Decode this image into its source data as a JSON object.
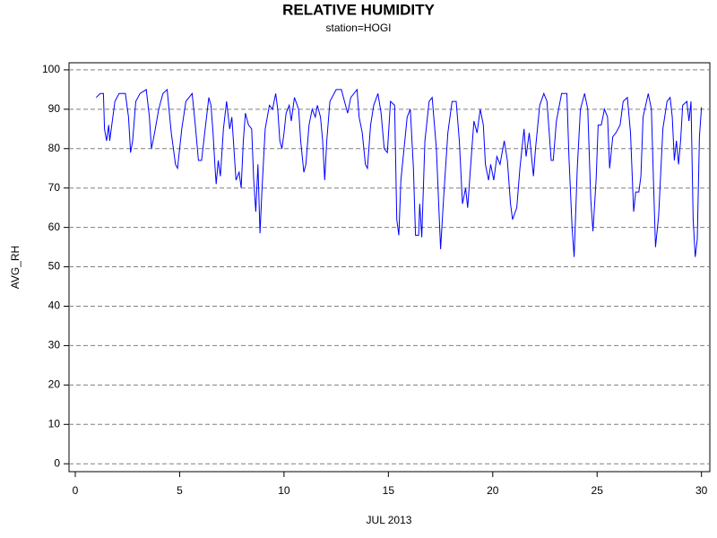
{
  "chart_data": {
    "type": "line",
    "title": "RELATIVE HUMIDITY",
    "subtitle": "station=HOGI",
    "xlabel": "JUL 2013",
    "ylabel": "AVG_RH",
    "color": "#0000ff",
    "grid": true,
    "xlim": [
      -0.3,
      30.4
    ],
    "xticks": [
      0,
      5,
      10,
      15,
      20,
      25,
      30
    ],
    "ylim": [
      -2,
      101.8
    ],
    "yticks": [
      0,
      10,
      20,
      30,
      40,
      50,
      60,
      70,
      80,
      90,
      100
    ],
    "x": [
      1.0,
      1.2,
      1.35,
      1.4,
      1.5,
      1.6,
      1.65,
      1.8,
      1.9,
      2.1,
      2.4,
      2.55,
      2.65,
      2.75,
      2.9,
      3.1,
      3.4,
      3.55,
      3.65,
      3.8,
      4.0,
      4.2,
      4.4,
      4.6,
      4.8,
      4.9,
      5.1,
      5.3,
      5.6,
      5.75,
      5.9,
      6.05,
      6.2,
      6.4,
      6.5,
      6.6,
      6.7,
      6.75,
      6.85,
      6.95,
      7.1,
      7.25,
      7.4,
      7.5,
      7.6,
      7.7,
      7.85,
      7.95,
      8.05,
      8.15,
      8.3,
      8.45,
      8.55,
      8.65,
      8.75,
      8.85,
      8.95,
      9.1,
      9.3,
      9.45,
      9.6,
      9.7,
      9.8,
      9.9,
      10.0,
      10.1,
      10.25,
      10.35,
      10.5,
      10.7,
      10.8,
      10.95,
      11.05,
      11.2,
      11.35,
      11.5,
      11.6,
      11.75,
      11.85,
      11.95,
      12.05,
      12.2,
      12.5,
      12.75,
      12.9,
      13.05,
      13.2,
      13.5,
      13.6,
      13.75,
      13.9,
      14.0,
      14.15,
      14.3,
      14.5,
      14.65,
      14.8,
      14.95,
      15.1,
      15.3,
      15.4,
      15.5,
      15.6,
      15.75,
      15.9,
      16.05,
      16.2,
      16.3,
      16.45,
      16.5,
      16.6,
      16.75,
      16.95,
      17.1,
      17.3,
      17.5,
      17.65,
      17.85,
      18.05,
      18.25,
      18.4,
      18.55,
      18.7,
      18.8,
      19.0,
      19.1,
      19.25,
      19.4,
      19.55,
      19.65,
      19.8,
      19.9,
      20.05,
      20.2,
      20.35,
      20.55,
      20.7,
      20.85,
      20.95,
      21.15,
      21.3,
      21.5,
      21.6,
      21.75,
      21.95,
      22.05,
      22.25,
      22.45,
      22.6,
      22.8,
      22.9,
      23.05,
      23.3,
      23.55,
      23.65,
      23.8,
      23.9,
      24.05,
      24.2,
      24.4,
      24.55,
      24.7,
      24.8,
      24.95,
      25.05,
      25.2,
      25.35,
      25.5,
      25.6,
      25.75,
      25.9,
      26.1,
      26.25,
      26.45,
      26.6,
      26.75,
      26.85,
      27.0,
      27.1,
      27.2,
      27.45,
      27.6,
      27.7,
      27.8,
      27.95,
      28.15,
      28.35,
      28.5,
      28.6,
      28.7,
      28.8,
      28.9,
      29.0,
      29.1,
      29.3,
      29.4,
      29.5,
      29.6,
      29.7,
      29.8,
      29.9,
      30.0
    ],
    "values": [
      93,
      94,
      94,
      85,
      82,
      86,
      82,
      88,
      92,
      94,
      94,
      88,
      79,
      82,
      92,
      94,
      95,
      88,
      80,
      84,
      90,
      94,
      95,
      84,
      76,
      75,
      85,
      92,
      94,
      86,
      77,
      77,
      84,
      93,
      91,
      84,
      75,
      71,
      77,
      73,
      85,
      92,
      85,
      88,
      80,
      72,
      74,
      70,
      82,
      89,
      86,
      85,
      72,
      64,
      76,
      58.5,
      70,
      85,
      91,
      90,
      94,
      90,
      82,
      80,
      84,
      89,
      91,
      87,
      93,
      90,
      82,
      74,
      76,
      86,
      90,
      88,
      91,
      88,
      82,
      72,
      82,
      92,
      95,
      95,
      92,
      89,
      93,
      95,
      88,
      84,
      76,
      75,
      86,
      91,
      94,
      89,
      80,
      79,
      92,
      91,
      62,
      58,
      72,
      80,
      88,
      90,
      75,
      58,
      58,
      66,
      57.5,
      82,
      92,
      93,
      80,
      54.5,
      68,
      84,
      92,
      92,
      82,
      66,
      70,
      65,
      80,
      87,
      84,
      90,
      86,
      76,
      72,
      76,
      72,
      78,
      76,
      82,
      77,
      66,
      62,
      65,
      75,
      85,
      78,
      84,
      73,
      80,
      91,
      94,
      92,
      77,
      77,
      87,
      94,
      94,
      78,
      60,
      52.5,
      75,
      90,
      94,
      90,
      67,
      59,
      72,
      86,
      86,
      90,
      88,
      75,
      83,
      84,
      86,
      92,
      93,
      84,
      64,
      69,
      69,
      73,
      88,
      94,
      90,
      72,
      55,
      63,
      85,
      92,
      93,
      88,
      77,
      82,
      76,
      82,
      91,
      92,
      87,
      92,
      62,
      52.5,
      57,
      83,
      90.5
    ]
  }
}
